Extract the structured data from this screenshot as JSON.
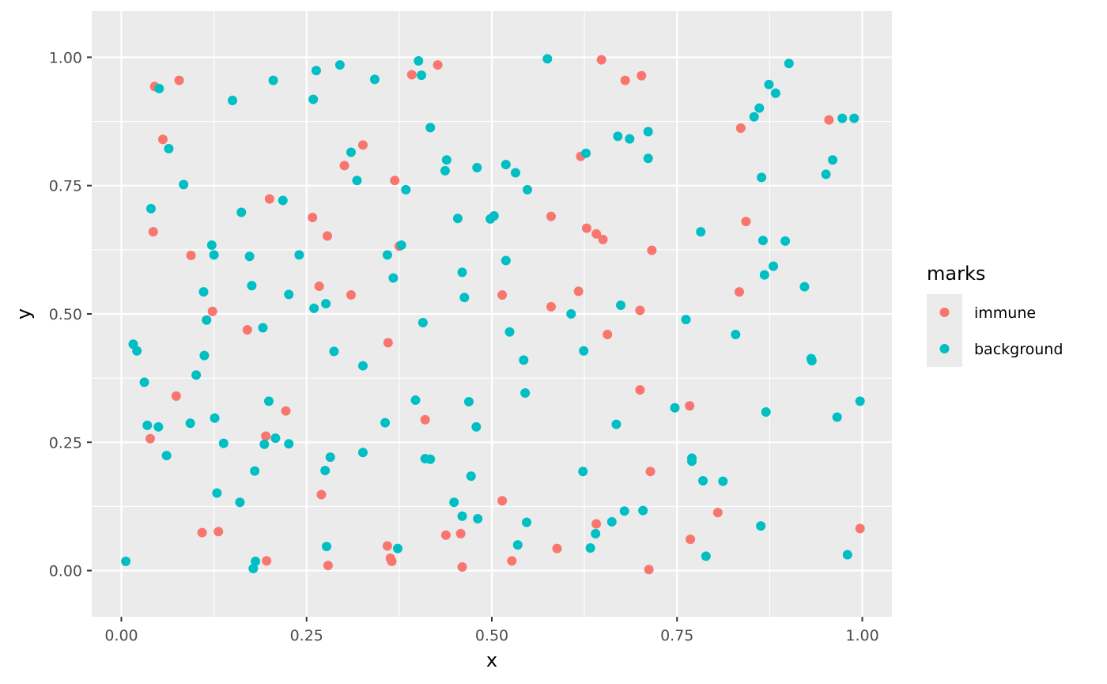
{
  "chart_data": {
    "type": "scatter",
    "xlabel": "x",
    "ylabel": "y",
    "xlim": [
      -0.04,
      1.04
    ],
    "ylim": [
      -0.09,
      1.09
    ],
    "x_ticks": [
      0,
      0.25,
      0.5,
      0.75,
      1
    ],
    "x_tick_labels": [
      "0.00",
      "0.25",
      "0.50",
      "0.75",
      "1.00"
    ],
    "y_ticks": [
      0,
      0.25,
      0.5,
      0.75,
      1
    ],
    "y_tick_labels": [
      "0.00",
      "0.25",
      "0.50",
      "0.75",
      "1.00"
    ],
    "grid": true,
    "legend": {
      "title": "marks",
      "position": "right"
    },
    "series": [
      {
        "name": "immune",
        "color": "#F8766D",
        "points": [
          [
            0.045,
            0.943
          ],
          [
            0.078,
            0.955
          ],
          [
            0.056,
            0.84
          ],
          [
            0.043,
            0.66
          ],
          [
            0.094,
            0.614
          ],
          [
            0.074,
            0.34
          ],
          [
            0.039,
            0.257
          ],
          [
            0.123,
            0.505
          ],
          [
            0.109,
            0.074
          ],
          [
            0.131,
            0.076
          ],
          [
            0.195,
            0.262
          ],
          [
            0.2,
            0.724
          ],
          [
            0.17,
            0.469
          ],
          [
            0.222,
            0.311
          ],
          [
            0.196,
            0.019
          ],
          [
            0.258,
            0.688
          ],
          [
            0.278,
            0.652
          ],
          [
            0.267,
            0.554
          ],
          [
            0.27,
            0.148
          ],
          [
            0.279,
            0.01
          ],
          [
            0.301,
            0.789
          ],
          [
            0.326,
            0.829
          ],
          [
            0.31,
            0.537
          ],
          [
            0.36,
            0.444
          ],
          [
            0.369,
            0.76
          ],
          [
            0.375,
            0.632
          ],
          [
            0.359,
            0.048
          ],
          [
            0.363,
            0.024
          ],
          [
            0.365,
            0.018
          ],
          [
            0.392,
            0.966
          ],
          [
            0.427,
            0.985
          ],
          [
            0.41,
            0.294
          ],
          [
            0.438,
            0.069
          ],
          [
            0.458,
            0.072
          ],
          [
            0.46,
            0.007
          ],
          [
            0.514,
            0.537
          ],
          [
            0.514,
            0.136
          ],
          [
            0.527,
            0.019
          ],
          [
            0.58,
            0.69
          ],
          [
            0.58,
            0.514
          ],
          [
            0.588,
            0.043
          ],
          [
            0.648,
            0.995
          ],
          [
            0.62,
            0.807
          ],
          [
            0.628,
            0.667
          ],
          [
            0.641,
            0.656
          ],
          [
            0.65,
            0.645
          ],
          [
            0.617,
            0.544
          ],
          [
            0.656,
            0.46
          ],
          [
            0.641,
            0.091
          ],
          [
            0.68,
            0.955
          ],
          [
            0.702,
            0.964
          ],
          [
            0.716,
            0.624
          ],
          [
            0.7,
            0.507
          ],
          [
            0.7,
            0.352
          ],
          [
            0.714,
            0.193
          ],
          [
            0.712,
            0.002
          ],
          [
            0.836,
            0.862
          ],
          [
            0.843,
            0.68
          ],
          [
            0.834,
            0.543
          ],
          [
            0.767,
            0.321
          ],
          [
            0.805,
            0.113
          ],
          [
            0.768,
            0.061
          ],
          [
            0.955,
            0.878
          ],
          [
            0.997,
            0.082
          ]
        ]
      },
      {
        "name": "background",
        "color": "#00BFC4",
        "points": [
          [
            0.051,
            0.939
          ],
          [
            0.064,
            0.822
          ],
          [
            0.084,
            0.752
          ],
          [
            0.04,
            0.705
          ],
          [
            0.016,
            0.441
          ],
          [
            0.021,
            0.428
          ],
          [
            0.031,
            0.367
          ],
          [
            0.035,
            0.283
          ],
          [
            0.05,
            0.28
          ],
          [
            0.061,
            0.224
          ],
          [
            0.006,
            0.018
          ],
          [
            0.15,
            0.916
          ],
          [
            0.162,
            0.698
          ],
          [
            0.122,
            0.634
          ],
          [
            0.125,
            0.615
          ],
          [
            0.111,
            0.543
          ],
          [
            0.115,
            0.488
          ],
          [
            0.112,
            0.419
          ],
          [
            0.101,
            0.381
          ],
          [
            0.093,
            0.287
          ],
          [
            0.126,
            0.297
          ],
          [
            0.138,
            0.248
          ],
          [
            0.129,
            0.151
          ],
          [
            0.16,
            0.133
          ],
          [
            0.205,
            0.955
          ],
          [
            0.218,
            0.721
          ],
          [
            0.173,
            0.612
          ],
          [
            0.176,
            0.555
          ],
          [
            0.226,
            0.538
          ],
          [
            0.191,
            0.473
          ],
          [
            0.199,
            0.33
          ],
          [
            0.193,
            0.246
          ],
          [
            0.208,
            0.258
          ],
          [
            0.226,
            0.247
          ],
          [
            0.18,
            0.194
          ],
          [
            0.181,
            0.018
          ],
          [
            0.178,
            0.004
          ],
          [
            0.263,
            0.974
          ],
          [
            0.295,
            0.985
          ],
          [
            0.259,
            0.918
          ],
          [
            0.24,
            0.615
          ],
          [
            0.276,
            0.52
          ],
          [
            0.26,
            0.511
          ],
          [
            0.287,
            0.427
          ],
          [
            0.282,
            0.221
          ],
          [
            0.275,
            0.195
          ],
          [
            0.277,
            0.047
          ],
          [
            0.342,
            0.957
          ],
          [
            0.31,
            0.815
          ],
          [
            0.318,
            0.76
          ],
          [
            0.359,
            0.615
          ],
          [
            0.326,
            0.399
          ],
          [
            0.326,
            0.23
          ],
          [
            0.356,
            0.288
          ],
          [
            0.367,
            0.57
          ],
          [
            0.378,
            0.634
          ],
          [
            0.373,
            0.043
          ],
          [
            0.401,
            0.993
          ],
          [
            0.405,
            0.965
          ],
          [
            0.417,
            0.863
          ],
          [
            0.384,
            0.742
          ],
          [
            0.407,
            0.483
          ],
          [
            0.397,
            0.332
          ],
          [
            0.41,
            0.218
          ],
          [
            0.417,
            0.217
          ],
          [
            0.439,
            0.8
          ],
          [
            0.437,
            0.779
          ],
          [
            0.454,
            0.686
          ],
          [
            0.46,
            0.581
          ],
          [
            0.463,
            0.532
          ],
          [
            0.469,
            0.329
          ],
          [
            0.479,
            0.28
          ],
          [
            0.472,
            0.184
          ],
          [
            0.449,
            0.133
          ],
          [
            0.46,
            0.106
          ],
          [
            0.481,
            0.101
          ],
          [
            0.48,
            0.785
          ],
          [
            0.519,
            0.791
          ],
          [
            0.532,
            0.775
          ],
          [
            0.548,
            0.742
          ],
          [
            0.498,
            0.685
          ],
          [
            0.503,
            0.691
          ],
          [
            0.519,
            0.604
          ],
          [
            0.524,
            0.465
          ],
          [
            0.543,
            0.41
          ],
          [
            0.545,
            0.346
          ],
          [
            0.547,
            0.094
          ],
          [
            0.535,
            0.05
          ],
          [
            0.575,
            0.997
          ],
          [
            0.627,
            0.813
          ],
          [
            0.607,
            0.5
          ],
          [
            0.624,
            0.428
          ],
          [
            0.623,
            0.193
          ],
          [
            0.64,
            0.072
          ],
          [
            0.633,
            0.044
          ],
          [
            0.67,
            0.846
          ],
          [
            0.686,
            0.841
          ],
          [
            0.711,
            0.855
          ],
          [
            0.711,
            0.803
          ],
          [
            0.674,
            0.517
          ],
          [
            0.668,
            0.285
          ],
          [
            0.679,
            0.116
          ],
          [
            0.662,
            0.095
          ],
          [
            0.704,
            0.117
          ],
          [
            0.747,
            0.317
          ],
          [
            0.762,
            0.489
          ],
          [
            0.782,
            0.66
          ],
          [
            0.77,
            0.219
          ],
          [
            0.77,
            0.213
          ],
          [
            0.785,
            0.175
          ],
          [
            0.789,
            0.028
          ],
          [
            0.812,
            0.174
          ],
          [
            0.901,
            0.988
          ],
          [
            0.874,
            0.947
          ],
          [
            0.883,
            0.93
          ],
          [
            0.861,
            0.901
          ],
          [
            0.854,
            0.884
          ],
          [
            0.864,
            0.766
          ],
          [
            0.866,
            0.643
          ],
          [
            0.868,
            0.576
          ],
          [
            0.88,
            0.593
          ],
          [
            0.896,
            0.642
          ],
          [
            0.829,
            0.46
          ],
          [
            0.87,
            0.309
          ],
          [
            0.863,
            0.087
          ],
          [
            0.973,
            0.881
          ],
          [
            0.989,
            0.881
          ],
          [
            0.96,
            0.8
          ],
          [
            0.951,
            0.772
          ],
          [
            0.922,
            0.553
          ],
          [
            0.931,
            0.413
          ],
          [
            0.932,
            0.409
          ],
          [
            0.966,
            0.299
          ],
          [
            0.997,
            0.33
          ],
          [
            0.98,
            0.031
          ]
        ]
      }
    ]
  }
}
